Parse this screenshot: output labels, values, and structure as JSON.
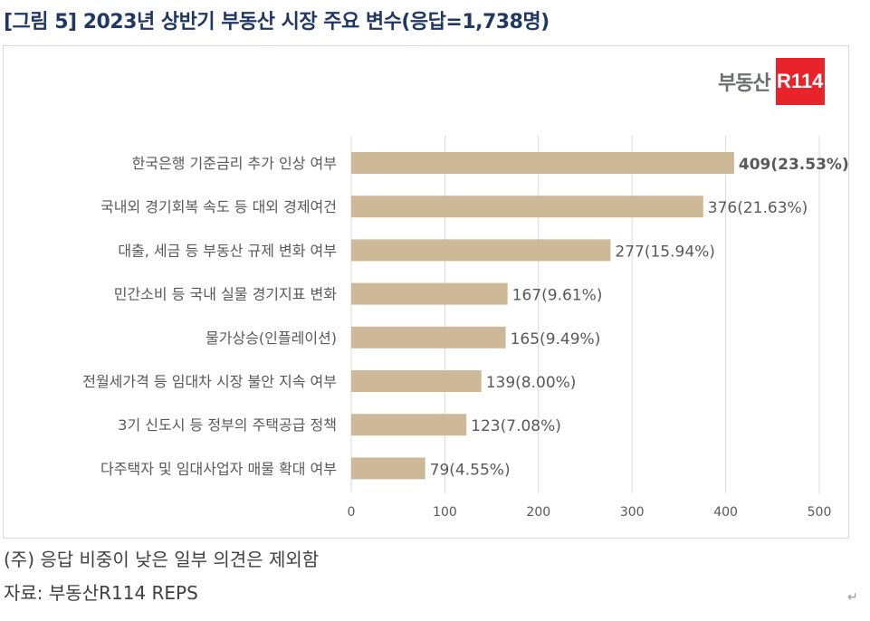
{
  "title": "[그림 5] 2023년 상반기 부동산 시장 주요 변수(응답=1,738명)",
  "logo": {
    "text": "부동산",
    "badge": "R114",
    "badge_color": "#e8232a"
  },
  "chart_data": {
    "type": "bar",
    "orientation": "horizontal",
    "categories": [
      "한국은행 기준금리 추가 인상 여부",
      "국내외 경기회복 속도 등 대외 경제여건",
      "대출, 세금 등 부동산 규제 변화 여부",
      "민간소비 등 국내 실물 경기지표 변화",
      "물가상승(인플레이션)",
      "전월세가격 등 임대차 시장 불안 지속 여부",
      "3기 신도시 등 정부의 주택공급 정책",
      "다주택자 및 임대사업자 매물 확대 여부"
    ],
    "values": [
      409,
      376,
      277,
      167,
      165,
      139,
      123,
      79
    ],
    "data_labels": [
      "409(23.53%)",
      "376(21.63%)",
      "277(15.94%)",
      "167(9.61%)",
      "165(9.49%)",
      "139(8.00%)",
      "123(7.08%)",
      "79(4.55%)"
    ],
    "xlim": [
      0,
      500
    ],
    "x_ticks": [
      "0",
      "100",
      "200",
      "300",
      "400",
      "500"
    ],
    "grid": true,
    "bar_color": "#cdb997"
  },
  "note": "(주) 응답 비중이 낮은 일부 의견은 제외함",
  "source": "자료: 부동산R114 REPS",
  "return_mark": "↵"
}
